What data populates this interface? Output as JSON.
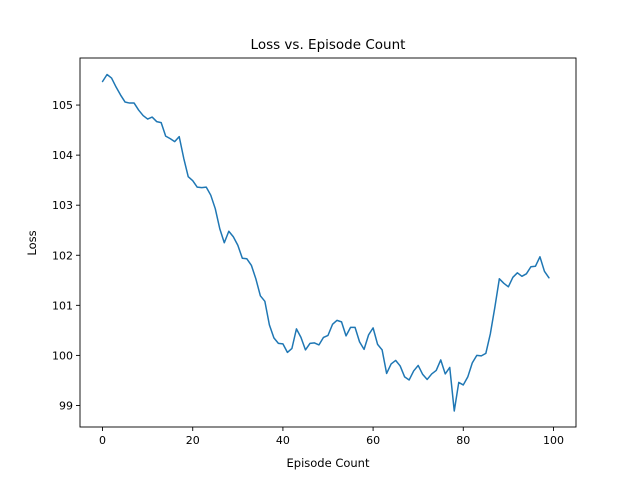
{
  "chart_data": {
    "type": "line",
    "title": "Loss vs. Episode Count",
    "xlabel": "Episode Count",
    "ylabel": "Loss",
    "xlim": [
      -5.0,
      105.0
    ],
    "ylim": [
      98.57,
      105.94
    ],
    "xticks": [
      0,
      20,
      40,
      60,
      80,
      100
    ],
    "yticks": [
      99,
      100,
      101,
      102,
      103,
      104,
      105
    ],
    "grid": false,
    "line_color": "#1f77b4",
    "series": [
      {
        "x": [
          0,
          1,
          2,
          3,
          4,
          5,
          6,
          7,
          8,
          9,
          10,
          11,
          12,
          13,
          14,
          15,
          16,
          17,
          18,
          19,
          20,
          21,
          22,
          23,
          24,
          25,
          26,
          27,
          28,
          29,
          30,
          31,
          32,
          33,
          34,
          35,
          36,
          37,
          38,
          39,
          40,
          41,
          42,
          43,
          44,
          45,
          46,
          47,
          48,
          49,
          50,
          51,
          52,
          53,
          54,
          55,
          56,
          57,
          58,
          59,
          60,
          61,
          62,
          63,
          64,
          65,
          66,
          67,
          68,
          69,
          70,
          71,
          72,
          73,
          74,
          75,
          76,
          77,
          78,
          79,
          80,
          81,
          82,
          83,
          84,
          85,
          86,
          87,
          88,
          89,
          90,
          91,
          92,
          93,
          94,
          95,
          96,
          97,
          98,
          99
        ],
        "values": [
          105.47,
          105.61,
          105.54,
          105.36,
          105.2,
          105.06,
          105.04,
          105.04,
          104.9,
          104.79,
          104.72,
          104.76,
          104.67,
          104.65,
          104.38,
          104.33,
          104.27,
          104.37,
          103.94,
          103.57,
          103.49,
          103.36,
          103.35,
          103.36,
          103.2,
          102.93,
          102.53,
          102.25,
          102.48,
          102.37,
          102.2,
          101.94,
          101.93,
          101.8,
          101.53,
          101.19,
          101.08,
          100.61,
          100.35,
          100.24,
          100.23,
          100.06,
          100.14,
          100.53,
          100.36,
          100.11,
          100.24,
          100.25,
          100.21,
          100.36,
          100.4,
          100.62,
          100.7,
          100.67,
          100.39,
          100.56,
          100.56,
          100.27,
          100.12,
          100.41,
          100.55,
          100.22,
          100.11,
          99.64,
          99.83,
          99.9,
          99.79,
          99.57,
          99.51,
          99.69,
          99.8,
          99.62,
          99.52,
          99.63,
          99.7,
          99.91,
          99.63,
          99.76,
          98.89,
          99.46,
          99.41,
          99.57,
          99.85,
          100.0,
          99.99,
          100.04,
          100.43,
          100.96,
          101.53,
          101.44,
          101.37,
          101.56,
          101.65,
          101.58,
          101.63,
          101.77,
          101.78,
          101.97,
          101.68,
          101.55
        ]
      }
    ]
  }
}
